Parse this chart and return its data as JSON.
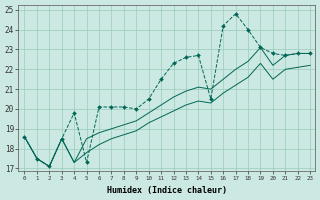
{
  "xlabel": "Humidex (Indice chaleur)",
  "bg_color": "#cce8e2",
  "grid_color": "#99ccbb",
  "line_color": "#006655",
  "xlim_min": -0.5,
  "xlim_max": 23.4,
  "ylim_min": 16.85,
  "ylim_max": 25.25,
  "xticks": [
    0,
    1,
    2,
    3,
    4,
    5,
    6,
    7,
    8,
    9,
    10,
    11,
    12,
    13,
    14,
    15,
    16,
    17,
    18,
    19,
    20,
    21,
    22,
    23
  ],
  "yticks": [
    17,
    18,
    19,
    20,
    21,
    22,
    23,
    24,
    25
  ],
  "line1_x": [
    0,
    1,
    2,
    3,
    4,
    5,
    6,
    7,
    8,
    9,
    10,
    11,
    12,
    13,
    14,
    15,
    16,
    17,
    18,
    19,
    20,
    21,
    22,
    23
  ],
  "line1_y": [
    18.6,
    17.5,
    17.1,
    18.5,
    19.8,
    17.3,
    20.1,
    20.1,
    20.1,
    20.0,
    20.5,
    21.5,
    22.3,
    22.6,
    22.7,
    20.5,
    24.2,
    24.8,
    24.0,
    23.1,
    22.8,
    22.7,
    22.8,
    22.8
  ],
  "line2_x": [
    0,
    1,
    2,
    3,
    4,
    5,
    6,
    7,
    8,
    9,
    10,
    11,
    12,
    13,
    14,
    15,
    16,
    17,
    18,
    19,
    20,
    21,
    22,
    23
  ],
  "line2_y": [
    18.6,
    17.5,
    17.1,
    18.5,
    17.3,
    18.5,
    18.8,
    19.0,
    19.2,
    19.4,
    19.8,
    20.2,
    20.6,
    20.9,
    21.1,
    21.0,
    21.5,
    22.0,
    22.4,
    23.1,
    22.2,
    22.7,
    22.8,
    22.8
  ],
  "line3_x": [
    0,
    1,
    2,
    3,
    4,
    5,
    6,
    7,
    8,
    9,
    10,
    11,
    12,
    13,
    14,
    15,
    16,
    17,
    18,
    19,
    20,
    21,
    22,
    23
  ],
  "line3_y": [
    18.6,
    17.5,
    17.1,
    18.5,
    17.3,
    17.8,
    18.2,
    18.5,
    18.7,
    18.9,
    19.3,
    19.6,
    19.9,
    20.2,
    20.4,
    20.3,
    20.8,
    21.2,
    21.6,
    22.3,
    21.5,
    22.0,
    22.1,
    22.2
  ]
}
